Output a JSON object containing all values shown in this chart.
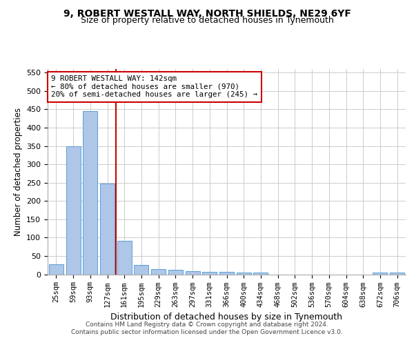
{
  "title1": "9, ROBERT WESTALL WAY, NORTH SHIELDS, NE29 6YF",
  "title2": "Size of property relative to detached houses in Tynemouth",
  "xlabel": "Distribution of detached houses by size in Tynemouth",
  "ylabel": "Number of detached properties",
  "categories": [
    "25sqm",
    "59sqm",
    "93sqm",
    "127sqm",
    "161sqm",
    "195sqm",
    "229sqm",
    "263sqm",
    "297sqm",
    "331sqm",
    "366sqm",
    "400sqm",
    "434sqm",
    "468sqm",
    "502sqm",
    "536sqm",
    "570sqm",
    "604sqm",
    "638sqm",
    "672sqm",
    "706sqm"
  ],
  "values": [
    27,
    350,
    445,
    248,
    92,
    25,
    14,
    12,
    8,
    6,
    6,
    5,
    5,
    0,
    0,
    0,
    0,
    0,
    0,
    5,
    5
  ],
  "bar_color": "#aec6e8",
  "bar_edge_color": "#5a9fd4",
  "red_line_color": "#cc0000",
  "annotation_text": "9 ROBERT WESTALL WAY: 142sqm\n← 80% of detached houses are smaller (970)\n20% of semi-detached houses are larger (245) →",
  "annotation_box_color": "#ffffff",
  "annotation_box_edge": "#cc0000",
  "ylim": [
    0,
    560
  ],
  "yticks": [
    0,
    50,
    100,
    150,
    200,
    250,
    300,
    350,
    400,
    450,
    500,
    550
  ],
  "footer1": "Contains HM Land Registry data © Crown copyright and database right 2024.",
  "footer2": "Contains public sector information licensed under the Open Government Licence v3.0.",
  "bg_color": "#ffffff",
  "grid_color": "#cccccc"
}
